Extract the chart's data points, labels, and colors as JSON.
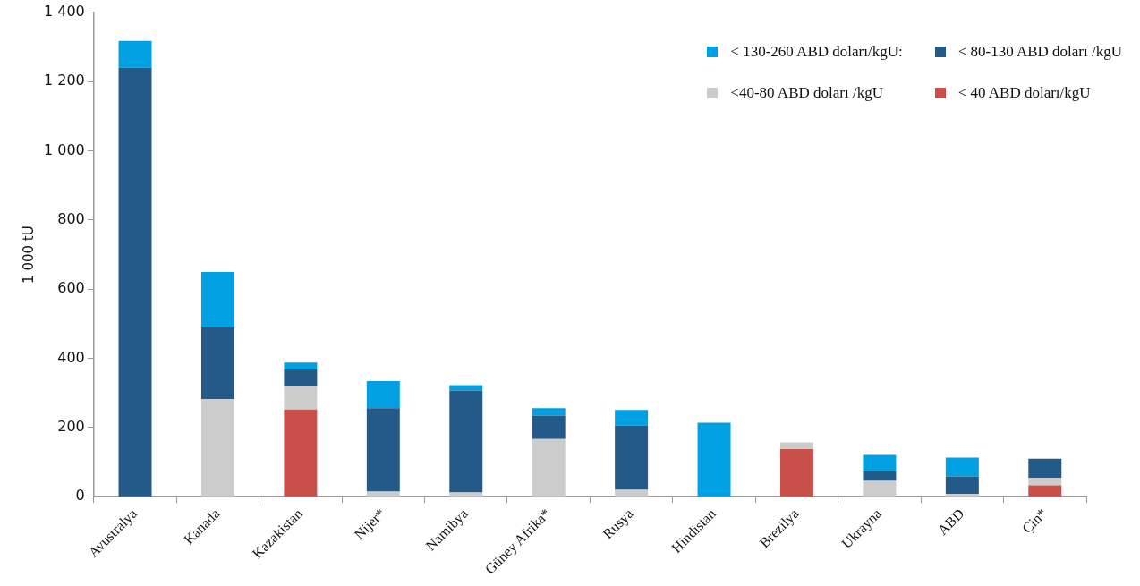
{
  "chart_data": {
    "type": "bar",
    "stacked": true,
    "ylabel": "1 000 tU",
    "legend": "top right",
    "grid": false,
    "categories": [
      "Avustralya",
      "Kanada",
      "Kazakistan",
      "Nijer*",
      "Namibya",
      "Güney Afrika*",
      "Rusya",
      "Hindistan",
      "Brezilya",
      "Ukrayna",
      "ABD",
      "Çin*"
    ],
    "series": [
      {
        "name": "< 40 ABD doları/kgU",
        "color": "#c9504a",
        "values": [
          0,
          0,
          252,
          0,
          0,
          0,
          0,
          0,
          138,
          0,
          0,
          33
        ]
      },
      {
        "name": "<40-80 ABD doları /kgU",
        "color": "#cccccc",
        "values": [
          0,
          282,
          66,
          15,
          12,
          167,
          20,
          0,
          19,
          46,
          8,
          22
        ]
      },
      {
        "name": "< 80-130 ABD doları /kgU",
        "color": "#245a87",
        "values": [
          1240,
          208,
          50,
          241,
          295,
          68,
          186,
          0,
          0,
          28,
          51,
          55
        ]
      },
      {
        "name": "< 130-260 ABD doları/kgU:",
        "color": "#00a0e3",
        "values": [
          78,
          160,
          20,
          78,
          16,
          21,
          45,
          214,
          0,
          47,
          54,
          0
        ]
      }
    ],
    "ylim": [
      0,
      1400
    ],
    "yticks": [
      0,
      200,
      400,
      600,
      800,
      {
        "value": 1000,
        "label": "1 000"
      },
      {
        "value": 1200,
        "label": "1 200"
      },
      {
        "value": 1400,
        "label": "1 400"
      }
    ]
  }
}
